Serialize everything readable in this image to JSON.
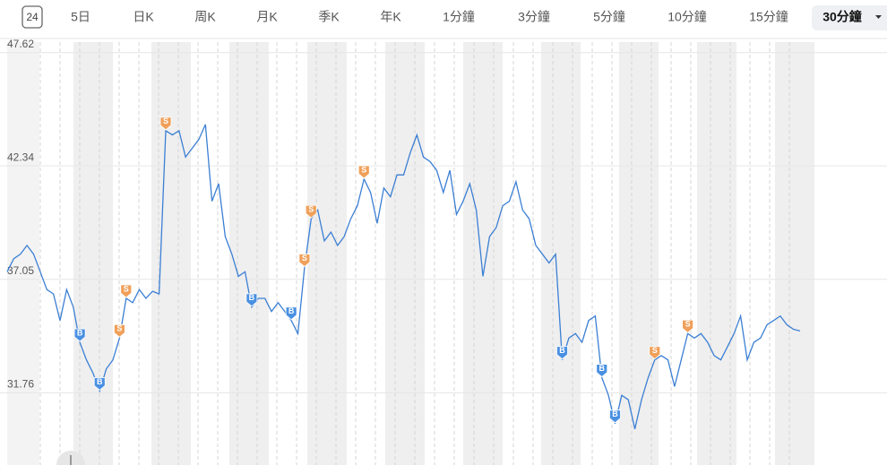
{
  "toolbar": {
    "calendar_icon": "24",
    "tabs": [
      "5日",
      "日K",
      "周K",
      "月K",
      "季K",
      "年K",
      "1分鐘",
      "3分鐘",
      "5分鐘",
      "10分鐘",
      "15分鐘",
      "30分鐘"
    ],
    "selected": 11
  },
  "chart_data": {
    "type": "line",
    "ylim": [
      28.39,
      48.11
    ],
    "yticks": [
      47.62,
      42.34,
      37.05,
      31.76
    ],
    "grid": true,
    "series": [
      {
        "color": "#3b7fd4",
        "values": [
          37.4,
          38.01,
          38.22,
          38.63,
          38.22,
          37.4,
          36.57,
          36.37,
          35.13,
          36.57,
          35.75,
          34.11,
          33.29,
          32.67,
          31.84,
          32.87,
          33.29,
          34.31,
          36.16,
          35.96,
          36.57,
          36.16,
          36.49,
          36.37,
          43.98,
          43.78,
          43.98,
          42.75,
          43.16,
          43.57,
          44.27,
          40.69,
          41.51,
          39.04,
          38.22,
          37.19,
          37.4,
          35.75,
          36.16,
          36.16,
          35.55,
          35.96,
          35.55,
          35.13,
          34.52,
          37.6,
          39.87,
          40.28,
          38.84,
          39.25,
          38.63,
          39.04,
          39.87,
          40.48,
          41.72,
          41.1,
          39.66,
          41.31,
          40.9,
          41.92,
          41.92,
          42.95,
          43.78,
          42.75,
          42.54,
          42.13,
          41.1,
          42.13,
          40.07,
          40.69,
          41.51,
          40.28,
          37.19,
          39.04,
          39.46,
          40.48,
          40.69,
          41.6,
          40.28,
          39.87,
          38.63,
          38.22,
          37.81,
          38.22,
          33.29,
          34.31,
          34.52,
          34.11,
          35.13,
          35.34,
          32.46,
          31.64,
          30.32,
          31.64,
          31.43,
          30.07,
          31.43,
          32.46,
          33.29,
          33.49,
          33.29,
          32.05,
          33.29,
          34.52,
          34.31,
          34.52,
          34.11,
          33.49,
          33.29,
          33.9,
          34.52,
          35.34,
          33.29,
          34.11,
          34.31,
          34.93,
          35.13,
          35.34,
          34.93,
          34.72,
          34.64
        ]
      }
    ],
    "signals": [
      {
        "label": "B",
        "index": 11,
        "color": "#4a90e2"
      },
      {
        "label": "B",
        "index": 14,
        "color": "#4a90e2"
      },
      {
        "label": "S",
        "index": 17,
        "color": "#f0a05a"
      },
      {
        "label": "S",
        "index": 18,
        "color": "#f0a05a"
      },
      {
        "label": "S",
        "index": 24,
        "color": "#f0a05a"
      },
      {
        "label": "B",
        "index": 37,
        "color": "#4a90e2"
      },
      {
        "label": "B",
        "index": 43,
        "color": "#4a90e2"
      },
      {
        "label": "S",
        "index": 45,
        "color": "#f0a05a"
      },
      {
        "label": "S",
        "index": 46,
        "color": "#f0a05a"
      },
      {
        "label": "S",
        "index": 54,
        "color": "#f0a05a"
      },
      {
        "label": "B",
        "index": 84,
        "color": "#4a90e2"
      },
      {
        "label": "B",
        "index": 90,
        "color": "#4a90e2"
      },
      {
        "label": "B",
        "index": 92,
        "color": "#4a90e2"
      },
      {
        "label": "S",
        "index": 98,
        "color": "#f0a05a"
      },
      {
        "label": "S",
        "index": 103,
        "color": "#f0a05a"
      }
    ]
  }
}
